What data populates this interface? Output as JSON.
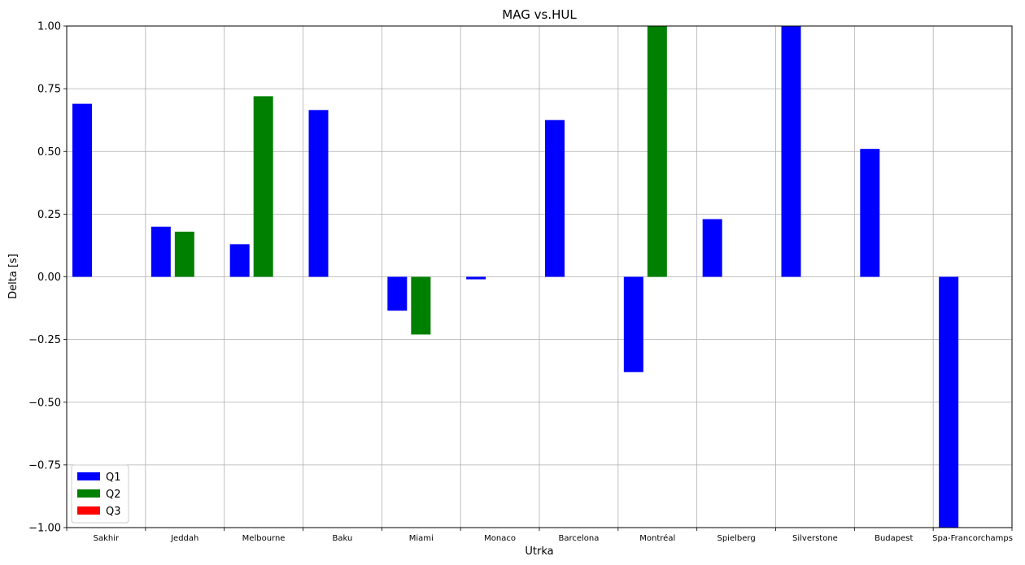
{
  "chart_data": {
    "type": "bar",
    "title": "MAG vs.HUL",
    "xlabel": "Utrka",
    "ylabel": "Delta [s]",
    "ylim": [
      -1.0,
      1.0
    ],
    "yticks": [
      "−1.00",
      "−0.75",
      "−0.50",
      "−0.25",
      "0.00",
      "0.25",
      "0.50",
      "0.75",
      "1.00"
    ],
    "ytick_values": [
      -1.0,
      -0.75,
      -0.5,
      -0.25,
      0.0,
      0.25,
      0.5,
      0.75,
      1.0
    ],
    "grid": true,
    "legend_position": "bottom-left",
    "categories": [
      "Sakhir",
      "Jeddah",
      "Melbourne",
      "Baku",
      "Miami",
      "Monaco",
      "Barcelona",
      "Montréal",
      "Spielberg",
      "Silverstone",
      "Budapest",
      "Spa-Francorchamps"
    ],
    "series": [
      {
        "name": "Q1",
        "color": "#0000ff",
        "values": [
          0.69,
          0.2,
          0.13,
          0.665,
          -0.135,
          -0.01,
          0.625,
          -0.38,
          0.23,
          1.0,
          0.51,
          -1.0
        ]
      },
      {
        "name": "Q2",
        "color": "#008000",
        "values": [
          null,
          0.18,
          0.72,
          null,
          -0.23,
          null,
          null,
          1.0,
          null,
          null,
          null,
          null
        ]
      },
      {
        "name": "Q3",
        "color": "#ff0000",
        "values": [
          null,
          null,
          null,
          null,
          null,
          null,
          null,
          null,
          null,
          null,
          null,
          null
        ]
      }
    ]
  }
}
